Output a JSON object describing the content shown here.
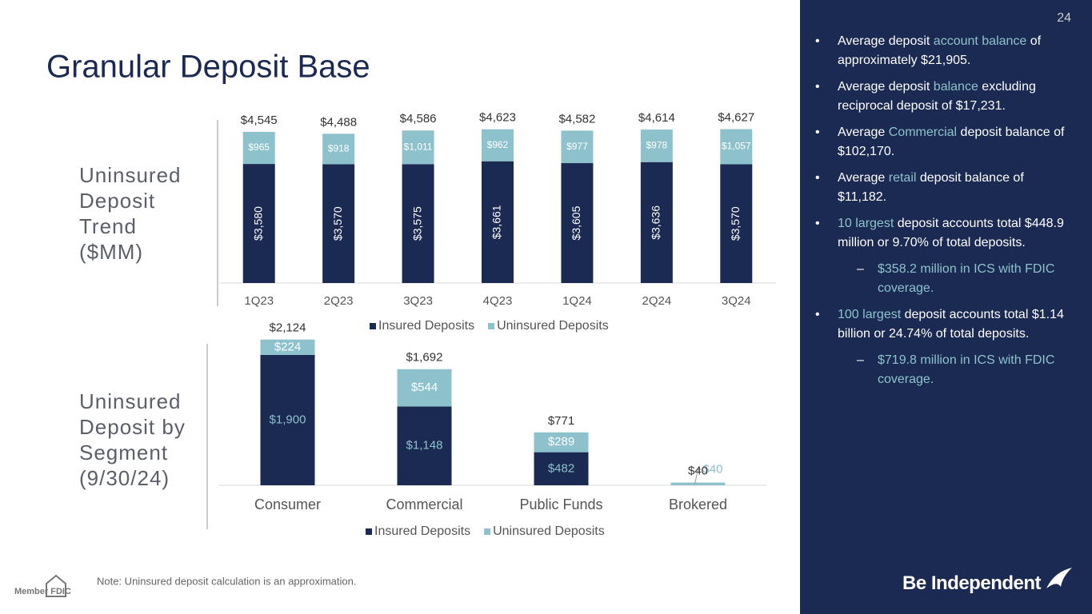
{
  "slide": {
    "title": "Granular Deposit Base",
    "page_number": "24",
    "note": "Note: Uninsured deposit calculation is an approximation.",
    "logo": "Be Independent",
    "fdic": "Member FDIC",
    "bullets": [
      {
        "level": 1,
        "parts": [
          {
            "text": "Average deposit "
          },
          {
            "text": "account balance",
            "highlight": true
          },
          {
            "text": " of approximately $21,905."
          }
        ]
      },
      {
        "level": 1,
        "parts": [
          {
            "text": "Average deposit "
          },
          {
            "text": "balance",
            "highlight": true
          },
          {
            "text": " excluding reciprocal deposit of $17,231."
          }
        ]
      },
      {
        "level": 1,
        "parts": [
          {
            "text": "Average "
          },
          {
            "text": "Commercial",
            "highlight": true
          },
          {
            "text": " deposit balance of $102,170."
          }
        ]
      },
      {
        "level": 1,
        "parts": [
          {
            "text": "Average "
          },
          {
            "text": "retail",
            "highlight": true
          },
          {
            "text": " deposit balance of $11,182."
          }
        ]
      },
      {
        "level": 1,
        "parts": [
          {
            "text": "10 largest",
            "highlight": true
          },
          {
            "text": " deposit accounts total $448.9 million or 9.70% of total deposits."
          }
        ]
      },
      {
        "level": 2,
        "parts": [
          {
            "text": "$358.2 million in ICS with FDIC coverage.",
            "highlight": true
          }
        ]
      },
      {
        "level": 1,
        "parts": [
          {
            "text": "100 largest",
            "highlight": true
          },
          {
            "text": " deposit accounts total $1.14 billion or 24.74% of total deposits."
          }
        ]
      },
      {
        "level": 2,
        "parts": [
          {
            "text": "$719.8 million in ICS with FDIC coverage.",
            "highlight": true
          }
        ]
      }
    ]
  },
  "chart_data": [
    {
      "type": "stacked_bar",
      "label": "Uninsured Deposit Trend ($MM)",
      "categories": [
        "1Q23",
        "2Q23",
        "3Q23",
        "4Q23",
        "1Q24",
        "2Q24",
        "3Q24"
      ],
      "series": [
        {
          "name": "Insured Deposits",
          "color": "#1b2a52",
          "values": [
            3580,
            3570,
            3575,
            3661,
            3605,
            3636,
            3570
          ],
          "value_labels": [
            "$3,580",
            "$3,570",
            "$3,575",
            "$3,661",
            "$3,605",
            "$3,636",
            "$3,570"
          ]
        },
        {
          "name": "Uninsured Deposits",
          "color": "#8dc2cc",
          "values": [
            965,
            918,
            1011,
            962,
            977,
            978,
            1057
          ],
          "value_labels": [
            "$965",
            "$918",
            "$1,011",
            "$962",
            "$977",
            "$978",
            "$1,057"
          ]
        }
      ],
      "totals": [
        4545,
        4488,
        4586,
        4623,
        4582,
        4614,
        4627
      ],
      "total_labels": [
        "$4,545",
        "$4,488",
        "$4,586",
        "$4,623",
        "$4,582",
        "$4,614",
        "$4,627"
      ],
      "ylim": [
        0,
        5000
      ],
      "rotate_first_labels": true
    },
    {
      "type": "stacked_bar",
      "label": "Uninsured Deposit by Segment (9/30/24)",
      "categories": [
        "Consumer",
        "Commercial",
        "Public Funds",
        "Brokered"
      ],
      "series": [
        {
          "name": "Insured Deposits",
          "color": "#1b2a52",
          "values": [
            1900,
            1148,
            482,
            null
          ],
          "value_labels": [
            "$1,900",
            "$1,148",
            "$482",
            null
          ]
        },
        {
          "name": "Uninsured Deposits",
          "color": "#8dc2cc",
          "values": [
            224,
            544,
            289,
            40
          ],
          "value_labels": [
            "$224",
            "$544",
            "$289",
            "$40"
          ]
        }
      ],
      "totals": [
        2124,
        1692,
        771,
        40
      ],
      "total_labels": [
        "$2,124",
        "$1,692",
        "$771",
        "$40"
      ],
      "ylim": [
        0,
        2400
      ],
      "rotate_first_labels": false
    }
  ]
}
